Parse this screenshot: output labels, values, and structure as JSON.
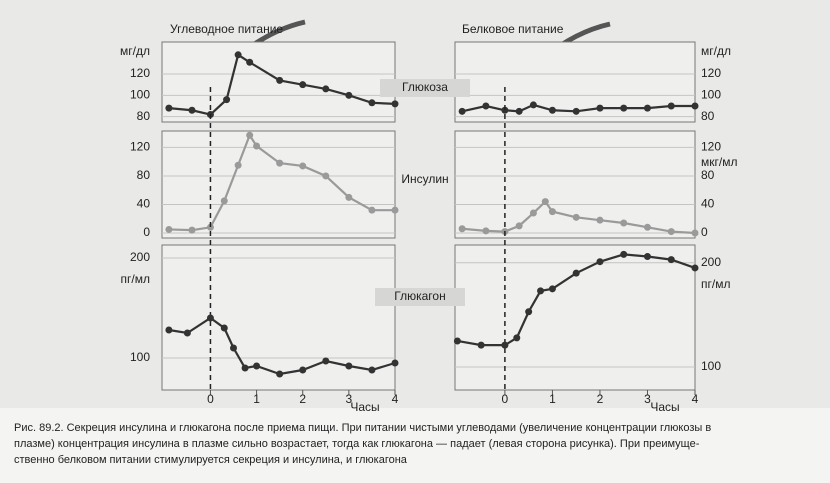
{
  "headers": [
    "Углеводное питание",
    "Белковое питание"
  ],
  "panel_labels": [
    "Глюкоза",
    "Инсулин",
    "Глюкагон"
  ],
  "caption": [
    "Рис. 89.2. Секреция инсулина и глюкагона после приема пищи. При питании чистыми углеводами (увеличение концентрации глюкозы в",
    "плазме) концентрация инсулина в плазме сильно возрастает, тогда как глюкагона — падает (левая сторона рисунка). При преимуще-",
    "ственно белковом питании стимулируется секреция и инсулина, и глюкагона"
  ],
  "chart_data": [
    {
      "type": "line",
      "ylabel": "мг/дл",
      "color": "#333333",
      "grid": true,
      "x": [
        -0.9,
        -0.4,
        0,
        0.35,
        0.6,
        0.85,
        1.5,
        2,
        2.5,
        3,
        3.5,
        4
      ],
      "values": [
        88,
        86,
        82,
        96,
        138,
        131,
        114,
        110,
        106,
        100,
        93,
        92
      ],
      "xlim": [
        -1.05,
        4
      ],
      "ylim": [
        75,
        150
      ],
      "yticks": [
        80,
        100,
        120
      ]
    },
    {
      "type": "line",
      "color": "#9a9a9a",
      "grid": true,
      "x": [
        -0.9,
        -0.4,
        0,
        0.3,
        0.6,
        0.85,
        1,
        1.5,
        2,
        2.5,
        3,
        3.5,
        4
      ],
      "values": [
        5,
        4,
        8,
        45,
        95,
        137,
        122,
        98,
        94,
        80,
        50,
        32,
        32
      ],
      "xlim": [
        -1.05,
        4
      ],
      "ylim": [
        -7,
        143
      ],
      "yticks": [
        0,
        40,
        80,
        120
      ]
    },
    {
      "type": "line",
      "ylabel": "пг/мл",
      "xlabel": "Часы",
      "color": "#333333",
      "grid": true,
      "x": [
        -0.9,
        -0.5,
        0,
        0.3,
        0.5,
        0.75,
        1,
        1.5,
        2,
        2.5,
        3,
        3.5,
        4
      ],
      "values": [
        128,
        125,
        140,
        130,
        110,
        90,
        92,
        84,
        88,
        97,
        92,
        88,
        95
      ],
      "xlim": [
        -1.05,
        4
      ],
      "xticks": [
        0,
        1,
        2,
        3,
        4
      ],
      "ylim": [
        68,
        213
      ],
      "yticks": [
        100,
        200
      ]
    },
    {
      "type": "line",
      "ylabel": "мг/дл",
      "color": "#333333",
      "grid": true,
      "x": [
        -0.9,
        -0.4,
        0,
        0.3,
        0.6,
        1,
        1.5,
        2,
        2.5,
        3,
        3.5,
        4
      ],
      "values": [
        85,
        90,
        86,
        85,
        91,
        86,
        85,
        88,
        88,
        88,
        90,
        90
      ],
      "xlim": [
        -1.05,
        4
      ],
      "ylim": [
        75,
        150
      ],
      "yticks": [
        80,
        100,
        120
      ]
    },
    {
      "type": "line",
      "ylabel": "мкг/мл",
      "color": "#9a9a9a",
      "grid": true,
      "x": [
        -0.9,
        -0.4,
        0,
        0.3,
        0.6,
        0.85,
        1,
        1.5,
        2,
        2.5,
        3,
        3.5,
        4
      ],
      "values": [
        6,
        3,
        2,
        10,
        28,
        44,
        30,
        22,
        18,
        14,
        8,
        2,
        0
      ],
      "xlim": [
        -1.05,
        4
      ],
      "ylim": [
        -7,
        143
      ],
      "yticks": [
        0,
        40,
        80,
        120
      ]
    },
    {
      "type": "line",
      "ylabel": "пг/мл",
      "xlabel": "Часы",
      "color": "#333333",
      "grid": true,
      "x": [
        -1,
        -0.5,
        0,
        0.25,
        0.5,
        0.75,
        1,
        1.5,
        2,
        2.5,
        3,
        3.5,
        4
      ],
      "values": [
        125,
        121,
        121,
        128,
        153,
        173,
        175,
        190,
        201,
        208,
        206,
        203,
        195
      ],
      "xlim": [
        -1.05,
        4
      ],
      "xticks": [
        0,
        1,
        2,
        3,
        4
      ],
      "ylim": [
        78,
        217
      ],
      "yticks": [
        100,
        200
      ]
    }
  ]
}
